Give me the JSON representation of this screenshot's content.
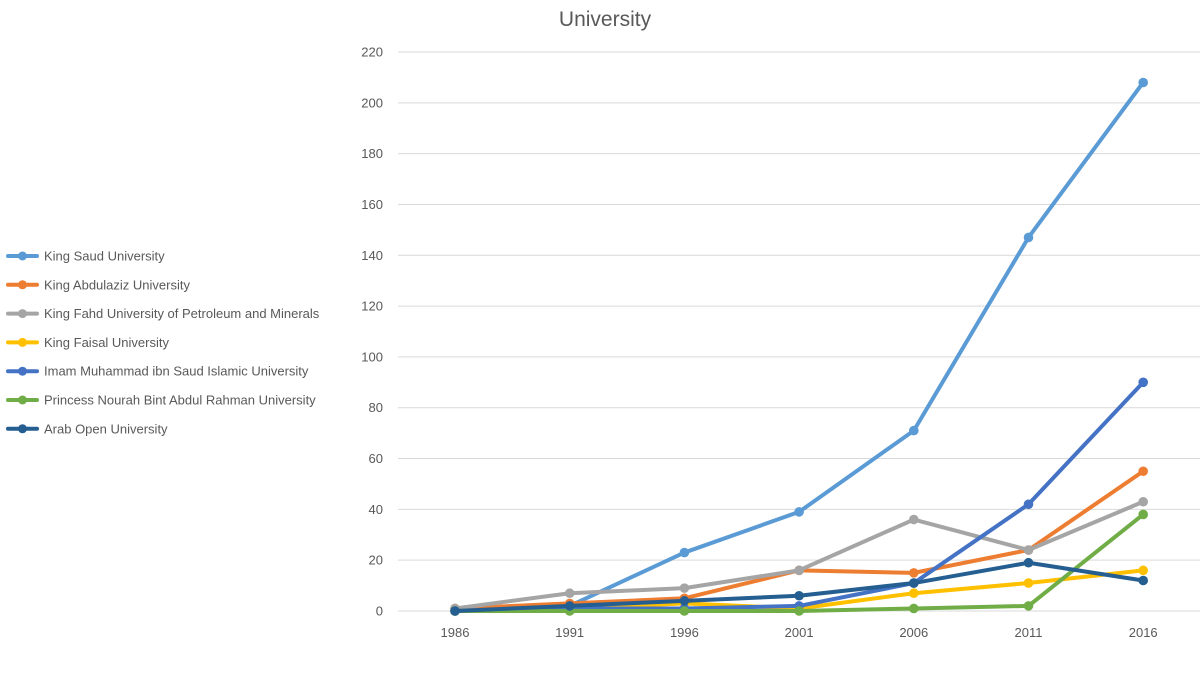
{
  "chart_data": {
    "type": "line",
    "title": "University",
    "xlabel": "",
    "ylabel": "",
    "ylim": [
      0,
      220
    ],
    "y_ticks": [
      0,
      20,
      40,
      60,
      80,
      100,
      120,
      140,
      160,
      180,
      200,
      220
    ],
    "y_tick_labels": [
      "0",
      "20",
      "40",
      "60",
      "80",
      "100",
      "120",
      "140",
      "160",
      "180",
      "200",
      "220"
    ],
    "categories": [
      "1986",
      "1991",
      "1996",
      "2001",
      "2006",
      "2011",
      "2016"
    ],
    "grid": true,
    "legend_position": "left",
    "series": [
      {
        "name": "King Saud University",
        "color": "#5B9BD5",
        "values": [
          0,
          2,
          23,
          39,
          71,
          147,
          208
        ]
      },
      {
        "name": "King Abdulaziz University",
        "color": "#ED7D31",
        "values": [
          1,
          3,
          5,
          16,
          15,
          24,
          55
        ]
      },
      {
        "name": "King Fahd University of Petroleum and Minerals",
        "color": "#A5A5A5",
        "values": [
          1,
          7,
          9,
          16,
          36,
          24,
          43
        ]
      },
      {
        "name": "King Faisal University",
        "color": "#FFC000",
        "values": [
          0,
          1,
          3,
          1,
          7,
          11,
          16
        ]
      },
      {
        "name": "Imam Muhammad ibn Saud Islamic University",
        "color": "#4472C4",
        "values": [
          0,
          1,
          1,
          2,
          11,
          42,
          90
        ]
      },
      {
        "name": "Princess Nourah Bint Abdul Rahman University",
        "color": "#70AD47",
        "values": [
          0,
          0,
          0,
          0,
          1,
          2,
          38
        ]
      },
      {
        "name": "Arab Open University",
        "color": "#255E91",
        "values": [
          0,
          2,
          4,
          6,
          11,
          19,
          12
        ]
      }
    ]
  }
}
